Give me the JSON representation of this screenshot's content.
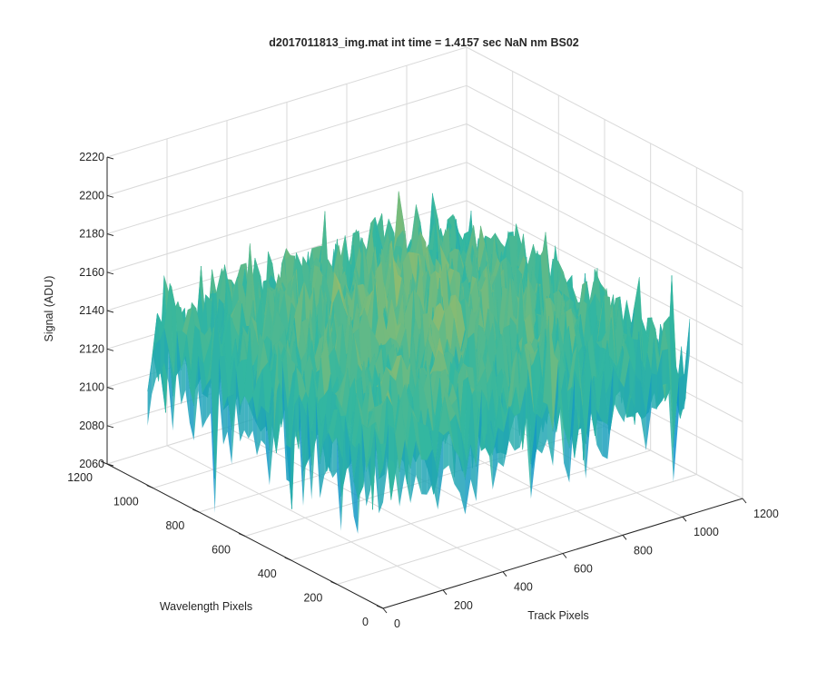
{
  "chart_data": {
    "type": "surface",
    "title": "d2017011813_img.mat int time = 1.4157 sec  NaN nm BS02",
    "xlabel": "Track Pixels",
    "ylabel": "Wavelength Pixels",
    "zlabel": "Signal (ADU)",
    "xlim": [
      0,
      1200
    ],
    "ylim": [
      0,
      1200
    ],
    "zlim": [
      2060,
      2220
    ],
    "x_ticks": [
      0,
      200,
      400,
      600,
      800,
      1000,
      1200
    ],
    "y_ticks": [
      0,
      200,
      400,
      600,
      800,
      1000,
      1200
    ],
    "z_ticks": [
      2060,
      2080,
      2100,
      2120,
      2140,
      2160,
      2180,
      2200,
      2220
    ],
    "x_tick_labels": [
      "0",
      "200",
      "400",
      "600",
      "800",
      "1000",
      "1200"
    ],
    "y_tick_labels": [
      "0",
      "200",
      "400",
      "600",
      "800",
      "1000",
      "1200"
    ],
    "z_tick_labels": [
      "2060",
      "2080",
      "2100",
      "2120",
      "2140",
      "2160",
      "2180",
      "2200",
      "2220"
    ],
    "grid": true,
    "colormap": "parula",
    "surface_extent": {
      "x": [
        0,
        1024
      ],
      "y": [
        0,
        1024
      ]
    },
    "surface_profile": {
      "mean_edge": 2138,
      "mean_center": 2152,
      "noise_range": [
        2075,
        2205
      ]
    },
    "colors": {
      "low": "#0a8fd0",
      "mid": "#33b7a0",
      "high": "#f3c13a",
      "axis": "#262626",
      "grid": "#d9d9d9"
    }
  }
}
